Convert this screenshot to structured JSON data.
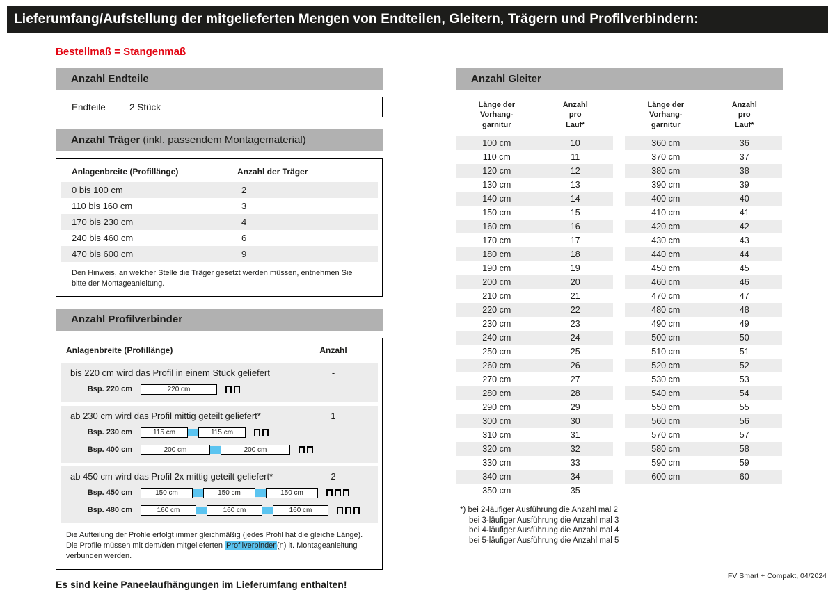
{
  "page": {
    "title": "Lieferumfang/Aufstellung der mitgelieferten Mengen von Endteilen, Gleitern, Trägern und Profilverbindern:",
    "subtitle": "Bestellmaß = Stangenmaß",
    "footer": "FV Smart + Compakt, 04/2024"
  },
  "colors": {
    "accent_red": "#e30613",
    "highlight_cyan": "#5bc4f0",
    "section_gray": "#b1b1b1",
    "stripe_gray": "#ececec",
    "titlebar_black": "#1d1d1b"
  },
  "endteile": {
    "header": "Anzahl Endteile",
    "label": "Endteile",
    "value": "2 Stück"
  },
  "traeger": {
    "header_bold": "Anzahl Träger",
    "header_rest": " (inkl. passendem Montagematerial)",
    "col1": "Anlagenbreite (Profillänge)",
    "col2": "Anzahl der Träger",
    "rows": [
      [
        "0 bis 100 cm",
        "2"
      ],
      [
        "110 bis 160 cm",
        "3"
      ],
      [
        "170 bis 230 cm",
        "4"
      ],
      [
        "240 bis 460 cm",
        "6"
      ],
      [
        "470 bis 600 cm",
        "9"
      ]
    ],
    "note": "Den Hinweis, an welcher Stelle die Träger gesetzt werden müssen, entnehmen Sie bitte der Montageanleitung."
  },
  "profilverbinder": {
    "header": "Anzahl Profilverbinder",
    "col1": "Anlagenbreite (Profillänge)",
    "col2": "Anzahl",
    "groups": [
      {
        "text": "bis 220 cm wird das Profil in einem Stück geliefert",
        "count": "-",
        "examples": [
          {
            "label": "Bsp. 220 cm",
            "segments": [
              "220 cm"
            ]
          }
        ]
      },
      {
        "text": "ab 230 cm wird das Profil mittig geteilt geliefert*",
        "count": "1",
        "examples": [
          {
            "label": "Bsp. 230 cm",
            "segments": [
              "115 cm",
              "115 cm"
            ]
          },
          {
            "label": "Bsp. 400 cm",
            "segments": [
              "200 cm",
              "200 cm"
            ]
          }
        ]
      },
      {
        "text": "ab 450 cm wird das Profil 2x mittig geteilt geliefert*",
        "count": "2",
        "examples": [
          {
            "label": "Bsp. 450 cm",
            "segments": [
              "150 cm",
              "150 cm",
              "150 cm"
            ]
          },
          {
            "label": "Bsp. 480 cm",
            "segments": [
              "160 cm",
              "160 cm",
              "160 cm"
            ]
          }
        ]
      }
    ],
    "note_part1": "Die Aufteilung der Profile erfolgt immer gleichmäßig (jedes Profil hat die gleiche Länge). Die Profile müssen mit dem/den mitgelieferten ",
    "note_highlight": "Profilverbinder",
    "note_part2": "(n) lt. Montageanleitung verbunden werden."
  },
  "paneel_note": "Es sind keine Paneelaufhängungen im Lieferumfang enthalten!",
  "gleiter": {
    "header": "Anzahl Gleiter",
    "col1_lines": [
      "Länge der",
      "Vorhang-",
      "garnitur"
    ],
    "col2_lines": [
      "Anzahl",
      "pro",
      "Lauf*"
    ],
    "table_left": [
      [
        "100 cm",
        "10"
      ],
      [
        "110 cm",
        "11"
      ],
      [
        "120 cm",
        "12"
      ],
      [
        "130 cm",
        "13"
      ],
      [
        "140 cm",
        "14"
      ],
      [
        "150 cm",
        "15"
      ],
      [
        "160 cm",
        "16"
      ],
      [
        "170 cm",
        "17"
      ],
      [
        "180 cm",
        "18"
      ],
      [
        "190 cm",
        "19"
      ],
      [
        "200 cm",
        "20"
      ],
      [
        "210 cm",
        "21"
      ],
      [
        "220 cm",
        "22"
      ],
      [
        "230 cm",
        "23"
      ],
      [
        "240 cm",
        "24"
      ],
      [
        "250 cm",
        "25"
      ],
      [
        "260 cm",
        "26"
      ],
      [
        "270 cm",
        "27"
      ],
      [
        "280 cm",
        "28"
      ],
      [
        "290 cm",
        "29"
      ],
      [
        "300 cm",
        "30"
      ],
      [
        "310 cm",
        "31"
      ],
      [
        "320 cm",
        "32"
      ],
      [
        "330 cm",
        "33"
      ],
      [
        "340 cm",
        "34"
      ],
      [
        "350 cm",
        "35"
      ]
    ],
    "table_right": [
      [
        "360 cm",
        "36"
      ],
      [
        "370 cm",
        "37"
      ],
      [
        "380 cm",
        "38"
      ],
      [
        "390 cm",
        "39"
      ],
      [
        "400 cm",
        "40"
      ],
      [
        "410 cm",
        "41"
      ],
      [
        "420 cm",
        "42"
      ],
      [
        "430 cm",
        "43"
      ],
      [
        "440 cm",
        "44"
      ],
      [
        "450 cm",
        "45"
      ],
      [
        "460 cm",
        "46"
      ],
      [
        "470 cm",
        "47"
      ],
      [
        "480 cm",
        "48"
      ],
      [
        "490 cm",
        "49"
      ],
      [
        "500 cm",
        "50"
      ],
      [
        "510 cm",
        "51"
      ],
      [
        "520 cm",
        "52"
      ],
      [
        "530 cm",
        "53"
      ],
      [
        "540 cm",
        "54"
      ],
      [
        "550 cm",
        "55"
      ],
      [
        "560 cm",
        "56"
      ],
      [
        "570 cm",
        "57"
      ],
      [
        "580 cm",
        "58"
      ],
      [
        "590 cm",
        "59"
      ],
      [
        "600 cm",
        "60"
      ]
    ],
    "footnotes": [
      "*) bei 2-läufiger Ausführung die Anzahl mal 2",
      "bei 3-läufiger Ausführung die Anzahl mal 3",
      "bei 4-läufiger Ausführung die Anzahl mal 4",
      "bei 5-läufiger Ausführung die Anzahl mal 5"
    ]
  }
}
